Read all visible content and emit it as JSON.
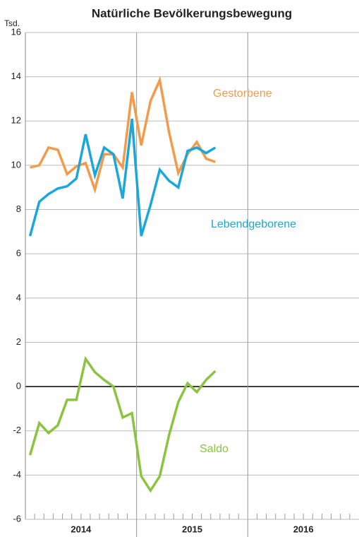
{
  "chart_data": {
    "type": "line",
    "title": "Natürliche Bevölkerungsbewegung",
    "y_unit": "Tsd.",
    "categories": [
      null,
      null,
      null,
      null,
      null,
      null,
      null,
      null,
      null,
      null,
      null,
      null,
      null,
      null,
      null,
      null,
      null,
      null,
      null,
      null,
      null,
      null,
      null,
      null,
      null,
      null,
      null,
      null,
      null,
      null,
      null,
      null,
      null,
      null,
      null,
      null
    ],
    "year_labels": [
      "2014",
      "2015",
      "2016"
    ],
    "series": [
      {
        "name": "Gestorbene",
        "color": "#f39a4b",
        "values": [
          9.9,
          10.0,
          10.8,
          10.7,
          9.6,
          9.95,
          10.1,
          8.9,
          10.5,
          10.5,
          9.9,
          13.3,
          10.9,
          12.9,
          13.85,
          11.5,
          9.65,
          10.5,
          11.05,
          10.3,
          10.15,
          null,
          null,
          null,
          null,
          null,
          null,
          null,
          null,
          null,
          null,
          null,
          null,
          null,
          null,
          null
        ]
      },
      {
        "name": "Lebendgeborene",
        "color": "#1aa7d9",
        "values": [
          6.8,
          8.35,
          8.7,
          8.95,
          9.05,
          9.4,
          11.4,
          9.55,
          10.8,
          10.5,
          8.5,
          12.1,
          6.8,
          8.2,
          9.8,
          9.3,
          9.0,
          10.65,
          10.8,
          10.55,
          10.8,
          null,
          null,
          null,
          null,
          null,
          null,
          null,
          null,
          null,
          null,
          null,
          null,
          null,
          null,
          null
        ]
      },
      {
        "name": "Saldo",
        "color": "#8bc43f",
        "values": [
          -3.1,
          -1.65,
          -2.1,
          -1.75,
          -0.6,
          -0.6,
          1.25,
          0.65,
          0.3,
          0.0,
          -1.4,
          -1.2,
          -4.05,
          -4.7,
          -4.05,
          -2.2,
          -0.7,
          0.15,
          -0.25,
          0.3,
          0.7,
          null,
          null,
          null,
          null,
          null,
          null,
          null,
          null,
          null,
          null,
          null,
          null,
          null,
          null,
          null
        ]
      }
    ],
    "ylim": [
      -6,
      16
    ],
    "yticks": [
      -6,
      -4,
      -2,
      0,
      2,
      4,
      6,
      8,
      10,
      12,
      14,
      16
    ],
    "grid": true
  }
}
